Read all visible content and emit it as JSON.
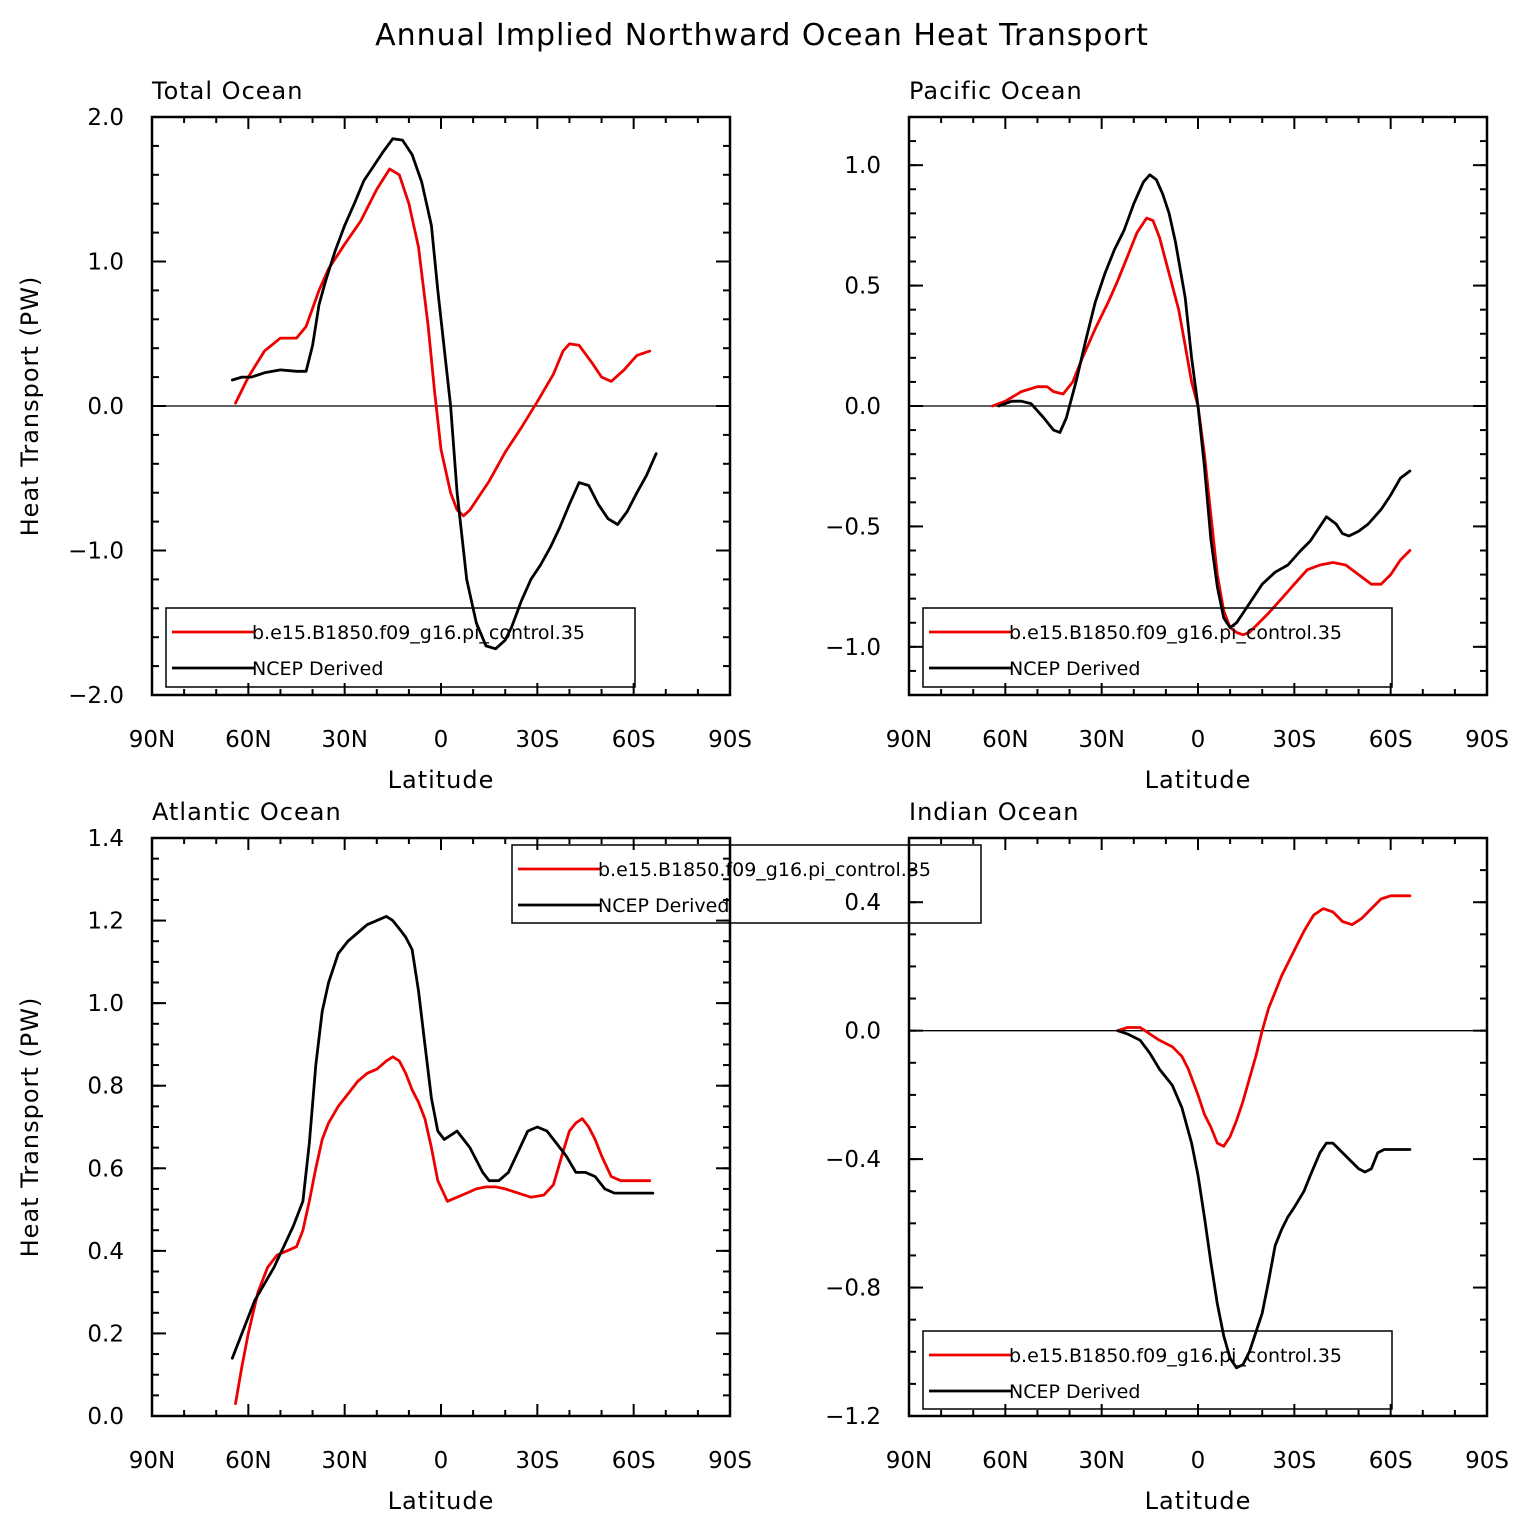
{
  "figure_title": "Annual Implied Northward Ocean Heat Transport",
  "colors": {
    "model": "#ee0000",
    "ncep": "#000000"
  },
  "chart_data": [
    {
      "type": "line",
      "title": "Total Ocean",
      "xlabel": "Latitude",
      "ylabel": "Heat Transport (PW)",
      "x_ticks": [
        "90N",
        "60N",
        "30N",
        "0",
        "30S",
        "60S",
        "90S"
      ],
      "x_range": [
        90,
        -90
      ],
      "ylim": [
        -2.0,
        2.0
      ],
      "y_ticks": [
        -2.0,
        -1.0,
        0.0,
        1.0,
        2.0
      ],
      "y_tick_labels": [
        "−2.0",
        "−1.0",
        "0.0",
        "1.0",
        "2.0"
      ],
      "y_minor_step": 0.2,
      "zero_line": true,
      "legend": [
        "b.e15.B1850.f09_g16.pi_control.35",
        "NCEP Derived"
      ],
      "series": [
        {
          "name": "b.e15.B1850.f09_g16.pi_control.35",
          "color": "#ee0000",
          "x": [
            64,
            60,
            55,
            50,
            45,
            42,
            38,
            35,
            30,
            25,
            20,
            16,
            13,
            10,
            7,
            4,
            2,
            0,
            -3,
            -5,
            -7,
            -9,
            -12,
            -15,
            -20,
            -25,
            -30,
            -35,
            -38,
            -40,
            -43,
            -47,
            -50,
            -53,
            -57,
            -61,
            -65
          ],
          "y": [
            0.02,
            0.2,
            0.38,
            0.47,
            0.47,
            0.55,
            0.8,
            0.95,
            1.12,
            1.28,
            1.5,
            1.64,
            1.6,
            1.4,
            1.1,
            0.55,
            0.1,
            -0.3,
            -0.6,
            -0.72,
            -0.76,
            -0.72,
            -0.62,
            -0.52,
            -0.32,
            -0.15,
            0.03,
            0.22,
            0.38,
            0.43,
            0.42,
            0.3,
            0.2,
            0.17,
            0.25,
            0.35,
            0.38
          ]
        },
        {
          "name": "NCEP Derived",
          "color": "#000000",
          "x": [
            65,
            62,
            59,
            55,
            50,
            45,
            42,
            40,
            38,
            36,
            33,
            30,
            27,
            24,
            21,
            18,
            15,
            12,
            9,
            6,
            3,
            1,
            -1,
            -3,
            -5,
            -8,
            -11,
            -14,
            -17,
            -20,
            -22,
            -25,
            -28,
            -31,
            -34,
            -37,
            -40,
            -43,
            -46,
            -49,
            -52,
            -55,
            -58,
            -61,
            -64,
            -67
          ],
          "y": [
            0.18,
            0.2,
            0.2,
            0.23,
            0.25,
            0.24,
            0.24,
            0.42,
            0.7,
            0.86,
            1.07,
            1.25,
            1.4,
            1.56,
            1.66,
            1.76,
            1.85,
            1.84,
            1.74,
            1.55,
            1.25,
            0.8,
            0.4,
            0.0,
            -0.6,
            -1.2,
            -1.5,
            -1.66,
            -1.68,
            -1.62,
            -1.53,
            -1.35,
            -1.2,
            -1.1,
            -0.98,
            -0.84,
            -0.68,
            -0.53,
            -0.55,
            -0.68,
            -0.78,
            -0.82,
            -0.73,
            -0.6,
            -0.48,
            -0.33
          ]
        }
      ]
    },
    {
      "type": "line",
      "title": "Pacific Ocean",
      "xlabel": "Latitude",
      "ylabel": "",
      "x_ticks": [
        "90N",
        "60N",
        "30N",
        "0",
        "30S",
        "60S",
        "90S"
      ],
      "x_range": [
        90,
        -90
      ],
      "ylim": [
        -1.2,
        1.2
      ],
      "y_ticks": [
        -1.0,
        -0.5,
        0.0,
        0.5,
        1.0
      ],
      "y_tick_labels": [
        "−1.0",
        "−0.5",
        "0.0",
        "0.5",
        "1.0"
      ],
      "y_minor_step": 0.1,
      "zero_line": true,
      "legend": [
        "b.e15.B1850.f09_g16.pi_control.35",
        "NCEP Derived"
      ],
      "series": [
        {
          "name": "b.e15.B1850.f09_g16.pi_control.35",
          "color": "#ee0000",
          "x": [
            64,
            60,
            55,
            50,
            47,
            45,
            42,
            39,
            36,
            32,
            28,
            25,
            22,
            19,
            16,
            14,
            12,
            10,
            8,
            6,
            4,
            2,
            0,
            -2,
            -4,
            -6,
            -8,
            -10,
            -12,
            -14,
            -16,
            -19,
            -22,
            -26,
            -30,
            -34,
            -38,
            -42,
            -46,
            -50,
            -54,
            -57,
            -60,
            -63,
            -66
          ],
          "y": [
            0.0,
            0.02,
            0.06,
            0.08,
            0.08,
            0.06,
            0.05,
            0.1,
            0.2,
            0.32,
            0.43,
            0.52,
            0.62,
            0.72,
            0.78,
            0.77,
            0.7,
            0.6,
            0.5,
            0.4,
            0.25,
            0.1,
            0.0,
            -0.2,
            -0.45,
            -0.7,
            -0.85,
            -0.92,
            -0.94,
            -0.95,
            -0.94,
            -0.9,
            -0.86,
            -0.8,
            -0.74,
            -0.68,
            -0.66,
            -0.65,
            -0.66,
            -0.7,
            -0.74,
            -0.74,
            -0.7,
            -0.64,
            -0.6
          ]
        },
        {
          "name": "NCEP Derived",
          "color": "#000000",
          "x": [
            62,
            58,
            55,
            52,
            50,
            48,
            45,
            43,
            41,
            38,
            35,
            32,
            29,
            26,
            23,
            20,
            17,
            15,
            13,
            11,
            9,
            7,
            4,
            2,
            0,
            -2,
            -4,
            -6,
            -8,
            -10,
            -12,
            -14,
            -17,
            -20,
            -24,
            -28,
            -32,
            -35,
            -38,
            -40,
            -43,
            -45,
            -47,
            -50,
            -53,
            -57,
            -60,
            -63,
            -66
          ],
          "y": [
            0.0,
            0.02,
            0.02,
            0.01,
            -0.02,
            -0.05,
            -0.1,
            -0.11,
            -0.05,
            0.1,
            0.27,
            0.43,
            0.55,
            0.65,
            0.73,
            0.84,
            0.93,
            0.96,
            0.94,
            0.88,
            0.8,
            0.68,
            0.45,
            0.2,
            0.0,
            -0.25,
            -0.55,
            -0.75,
            -0.88,
            -0.92,
            -0.9,
            -0.86,
            -0.8,
            -0.74,
            -0.69,
            -0.66,
            -0.6,
            -0.56,
            -0.5,
            -0.46,
            -0.49,
            -0.53,
            -0.54,
            -0.52,
            -0.49,
            -0.43,
            -0.37,
            -0.3,
            -0.27
          ]
        }
      ]
    },
    {
      "type": "line",
      "title": "Atlantic Ocean",
      "xlabel": "Latitude",
      "ylabel": "Heat Transport (PW)",
      "x_ticks": [
        "90N",
        "60N",
        "30N",
        "0",
        "30S",
        "60S",
        "90S"
      ],
      "x_range": [
        90,
        -90
      ],
      "ylim": [
        0.0,
        1.4
      ],
      "y_ticks": [
        0.0,
        0.2,
        0.4,
        0.6,
        0.8,
        1.0,
        1.2,
        1.4
      ],
      "y_tick_labels": [
        "0.0",
        "0.2",
        "0.4",
        "0.6",
        "0.8",
        "1.0",
        "1.2",
        "1.4"
      ],
      "y_minor_step": 0.05,
      "zero_line": false,
      "legend": [
        "b.e15.B1850.f09_g16.pi_control.35",
        "NCEP Derived"
      ],
      "series": [
        {
          "name": "b.e15.B1850.f09_g16.pi_control.35",
          "color": "#ee0000",
          "x": [
            64,
            62,
            60,
            57,
            54,
            51,
            48,
            45,
            43,
            41,
            39,
            37,
            35,
            32,
            29,
            26,
            23,
            20,
            17,
            15,
            13,
            11,
            9,
            7,
            5,
            3,
            1,
            -2,
            -5,
            -8,
            -11,
            -14,
            -17,
            -20,
            -24,
            -28,
            -32,
            -35,
            -38,
            -40,
            -42,
            -44,
            -46,
            -48,
            -50,
            -53,
            -56,
            -59,
            -62,
            -65
          ],
          "y": [
            0.03,
            0.12,
            0.2,
            0.3,
            0.36,
            0.39,
            0.4,
            0.41,
            0.45,
            0.52,
            0.6,
            0.67,
            0.71,
            0.75,
            0.78,
            0.81,
            0.83,
            0.84,
            0.86,
            0.87,
            0.86,
            0.83,
            0.79,
            0.76,
            0.72,
            0.65,
            0.57,
            0.52,
            0.53,
            0.54,
            0.55,
            0.555,
            0.555,
            0.55,
            0.54,
            0.53,
            0.535,
            0.56,
            0.64,
            0.69,
            0.71,
            0.72,
            0.7,
            0.67,
            0.63,
            0.58,
            0.57,
            0.57,
            0.57,
            0.57
          ]
        },
        {
          "name": "NCEP Derived",
          "color": "#000000",
          "x": [
            65,
            63,
            61,
            58,
            55,
            52,
            49,
            46,
            43,
            41,
            39,
            37,
            35,
            32,
            29,
            26,
            23,
            20,
            17,
            15,
            13,
            11,
            9,
            7,
            5,
            3,
            1,
            -1,
            -3,
            -5,
            -7,
            -9,
            -11,
            -13,
            -15,
            -18,
            -21,
            -24,
            -27,
            -30,
            -33,
            -36,
            -39,
            -42,
            -45,
            -48,
            -51,
            -54,
            -57,
            -60,
            -63,
            -66
          ],
          "y": [
            0.14,
            0.18,
            0.22,
            0.28,
            0.32,
            0.36,
            0.41,
            0.46,
            0.52,
            0.66,
            0.85,
            0.98,
            1.05,
            1.12,
            1.15,
            1.17,
            1.19,
            1.2,
            1.21,
            1.2,
            1.18,
            1.16,
            1.13,
            1.03,
            0.9,
            0.77,
            0.69,
            0.67,
            0.68,
            0.69,
            0.67,
            0.65,
            0.62,
            0.59,
            0.57,
            0.57,
            0.59,
            0.64,
            0.69,
            0.7,
            0.69,
            0.66,
            0.63,
            0.59,
            0.59,
            0.58,
            0.55,
            0.54,
            0.54,
            0.54,
            0.54,
            0.54
          ]
        }
      ]
    },
    {
      "type": "line",
      "title": "Indian Ocean",
      "xlabel": "Latitude",
      "ylabel": "",
      "x_ticks": [
        "90N",
        "60N",
        "30N",
        "0",
        "30S",
        "60S",
        "90S"
      ],
      "x_range": [
        90,
        -90
      ],
      "ylim": [
        -1.2,
        0.6
      ],
      "y_ticks": [
        -1.2,
        -0.8,
        -0.4,
        0.0,
        0.4
      ],
      "y_tick_labels": [
        "−1.2",
        "−0.8",
        "−0.4",
        "0.0",
        "0.4"
      ],
      "y_minor_step": 0.1,
      "zero_line": true,
      "legend": [
        "b.e15.B1850.f09_g16.pi_control.35",
        "NCEP Derived"
      ],
      "series": [
        {
          "name": "b.e15.B1850.f09_g16.pi_control.35",
          "color": "#ee0000",
          "x": [
            25,
            22,
            18,
            15,
            12,
            8,
            5,
            3,
            0,
            -2,
            -4,
            -6,
            -8,
            -10,
            -12,
            -14,
            -16,
            -18,
            -20,
            -22,
            -24,
            -26,
            -28,
            -30,
            -33,
            -36,
            -39,
            -42,
            -45,
            -48,
            -51,
            -54,
            -57,
            -60,
            -63,
            -66
          ],
          "y": [
            0.0,
            0.01,
            0.01,
            -0.01,
            -0.03,
            -0.05,
            -0.08,
            -0.12,
            -0.2,
            -0.26,
            -0.3,
            -0.35,
            -0.36,
            -0.33,
            -0.28,
            -0.22,
            -0.15,
            -0.08,
            0.0,
            0.07,
            0.12,
            0.17,
            0.21,
            0.25,
            0.31,
            0.36,
            0.38,
            0.37,
            0.34,
            0.33,
            0.35,
            0.38,
            0.41,
            0.42,
            0.42,
            0.42
          ]
        },
        {
          "name": "NCEP Derived",
          "color": "#000000",
          "x": [
            25,
            22,
            18,
            15,
            12,
            8,
            5,
            2,
            0,
            -2,
            -4,
            -6,
            -8,
            -10,
            -12,
            -14,
            -16,
            -18,
            -20,
            -22,
            -24,
            -26,
            -28,
            -30,
            -33,
            -35,
            -38,
            -40,
            -42,
            -44,
            -46,
            -48,
            -50,
            -52,
            -54,
            -56,
            -58,
            -62,
            -66
          ],
          "y": [
            0.0,
            -0.01,
            -0.03,
            -0.07,
            -0.12,
            -0.17,
            -0.24,
            -0.35,
            -0.45,
            -0.58,
            -0.72,
            -0.85,
            -0.95,
            -1.02,
            -1.05,
            -1.04,
            -1.0,
            -0.94,
            -0.88,
            -0.78,
            -0.67,
            -0.62,
            -0.58,
            -0.55,
            -0.5,
            -0.45,
            -0.38,
            -0.35,
            -0.35,
            -0.37,
            -0.39,
            -0.41,
            -0.43,
            -0.44,
            -0.43,
            -0.38,
            -0.37,
            -0.37,
            -0.37
          ]
        }
      ]
    }
  ]
}
